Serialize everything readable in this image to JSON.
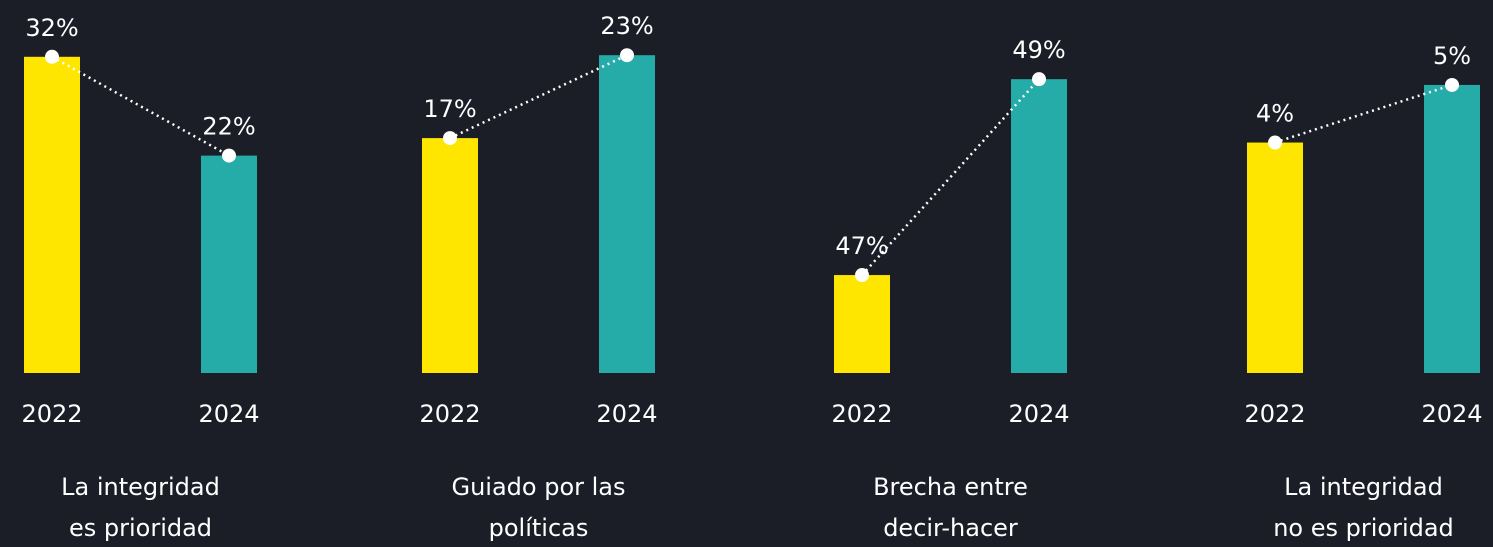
{
  "chart_data": [
    {
      "type": "bar",
      "title": [
        "La integridad",
        "es prioridad"
      ],
      "categories": [
        "2022",
        "2024"
      ],
      "values": [
        32,
        22
      ],
      "value_labels": [
        "32%",
        "22%"
      ],
      "colors": [
        "#ffe600",
        "#26aca8"
      ],
      "ylim": [
        0,
        33.7
      ]
    },
    {
      "type": "bar",
      "title": [
        "Guiado por las",
        "políticas"
      ],
      "categories": [
        "2022",
        "2024"
      ],
      "values": [
        17,
        23
      ],
      "value_labels": [
        "17%",
        "23%"
      ],
      "colors": [
        "#ffe600",
        "#26aca8"
      ],
      "ylim": [
        0,
        24.1
      ]
    },
    {
      "type": "bar",
      "title": [
        "Brecha entre",
        "decir-hacer"
      ],
      "categories": [
        "2022",
        "2024"
      ],
      "values": [
        47,
        49
      ],
      "value_labels": [
        "47%",
        "49%"
      ],
      "colors": [
        "#ffe600",
        "#26aca8"
      ],
      "ylim": [
        46,
        49.4
      ]
    },
    {
      "type": "bar",
      "title": [
        "La integridad",
        "no es prioridad"
      ],
      "categories": [
        "2022",
        "2024"
      ],
      "values": [
        4,
        5
      ],
      "value_labels": [
        "4%",
        "5%"
      ],
      "colors": [
        "#ffe600",
        "#26aca8"
      ],
      "ylim": [
        0,
        5.78
      ]
    }
  ]
}
